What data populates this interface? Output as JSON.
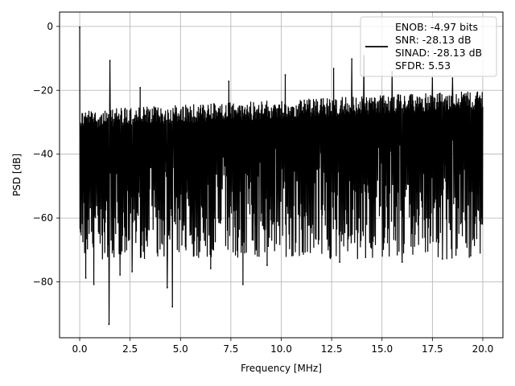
{
  "chart_data": {
    "type": "line",
    "title": "",
    "xlabel": "Frequency [MHz]",
    "ylabel": "PSD [dB]",
    "xlim": [
      -1.0,
      21.0
    ],
    "ylim": [
      -97.5,
      4.5
    ],
    "xticks": [
      0.0,
      2.5,
      5.0,
      7.5,
      10.0,
      12.5,
      15.0,
      17.5,
      20.0
    ],
    "xtick_labels": [
      "0.0",
      "2.5",
      "5.0",
      "7.5",
      "10.0",
      "12.5",
      "15.0",
      "17.5",
      "20.0"
    ],
    "yticks": [
      0,
      -20,
      -40,
      -60,
      -80
    ],
    "ytick_labels": [
      "0",
      "−20",
      "−40",
      "−60",
      "−80"
    ],
    "grid": true,
    "legend_position": "top-right",
    "series": [
      {
        "name": "ENOB: -4.97 bits\nSNR: -28.13 dB\nSINAD: -28.13 dB\nSFDR: 5.53",
        "color": "#000000",
        "description_envelope": {
          "x_range": [
            0.0,
            20.0
          ],
          "noise_floor_top_at_x0": -26,
          "noise_floor_top_at_x20": -20,
          "noise_floor_bottom_typical": -65
        },
        "peaks": [
          {
            "x": 0.0,
            "y": 0
          },
          {
            "x": 1.5,
            "y": -10.5
          },
          {
            "x": 3.0,
            "y": -19
          },
          {
            "x": 7.4,
            "y": -17
          },
          {
            "x": 10.2,
            "y": -15
          },
          {
            "x": 12.6,
            "y": -13
          },
          {
            "x": 13.5,
            "y": -10
          },
          {
            "x": 14.1,
            "y": -9
          },
          {
            "x": 15.5,
            "y": -14
          },
          {
            "x": 17.5,
            "y": -16
          },
          {
            "x": 18.5,
            "y": -16
          }
        ],
        "dips": [
          {
            "x": 1.45,
            "y": -93.5
          },
          {
            "x": 4.6,
            "y": -88
          },
          {
            "x": 4.35,
            "y": -82
          },
          {
            "x": 0.7,
            "y": -81
          },
          {
            "x": 8.1,
            "y": -81
          },
          {
            "x": 0.3,
            "y": -79
          },
          {
            "x": 2.0,
            "y": -78
          },
          {
            "x": 2.6,
            "y": -77
          },
          {
            "x": 6.5,
            "y": -76
          },
          {
            "x": 9.3,
            "y": -75
          },
          {
            "x": 12.9,
            "y": -74
          },
          {
            "x": 16.0,
            "y": -74
          },
          {
            "x": 18.0,
            "y": -73
          },
          {
            "x": 19.4,
            "y": -72
          }
        ]
      }
    ],
    "legend_lines": [
      "ENOB: -4.97 bits",
      "SNR: -28.13 dB",
      "SINAD: -28.13 dB",
      "SFDR: 5.53"
    ]
  }
}
